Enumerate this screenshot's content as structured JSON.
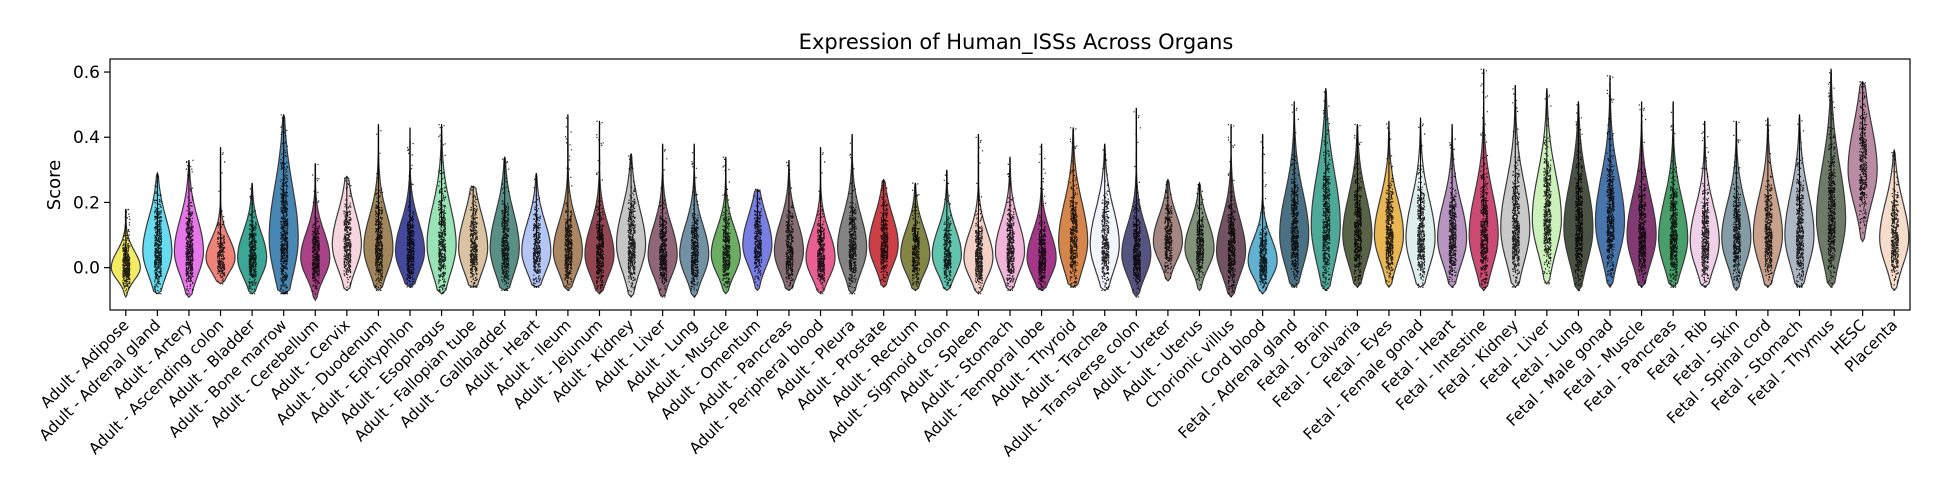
{
  "chart_data": {
    "type": "violin",
    "title": "Expression of Human_ISSs Across Organs",
    "xlabel": "",
    "ylabel": "Score",
    "ylim": [
      -0.13,
      0.64
    ],
    "yticks": [
      0.0,
      0.2,
      0.4,
      0.6
    ],
    "ytick_labels": [
      "0.0",
      "0.2",
      "0.4",
      "0.6"
    ],
    "grid": false,
    "legend": "none",
    "series": [
      {
        "category": "Adult - Adipose",
        "color": "#f2ea5b",
        "min": -0.09,
        "q1": -0.02,
        "median": 0.0,
        "q3": 0.03,
        "max": 0.18,
        "n": 1400
      },
      {
        "category": "Adult - Adrenal gland",
        "color": "#5fd9ee",
        "min": -0.08,
        "q1": 0.0,
        "median": 0.05,
        "q3": 0.1,
        "max": 0.29,
        "n": 1500
      },
      {
        "category": "Adult - Artery",
        "color": "#e56fe8",
        "min": -0.09,
        "q1": 0.0,
        "median": 0.05,
        "q3": 0.1,
        "max": 0.33,
        "n": 1500
      },
      {
        "category": "Adult - Ascending colon",
        "color": "#ee7b72",
        "min": -0.05,
        "q1": 0.0,
        "median": 0.03,
        "q3": 0.06,
        "max": 0.37,
        "n": 700
      },
      {
        "category": "Adult - Bladder",
        "color": "#2fa38f",
        "min": -0.08,
        "q1": -0.01,
        "median": 0.03,
        "q3": 0.07,
        "max": 0.26,
        "n": 1200
      },
      {
        "category": "Adult - Bone marrow",
        "color": "#3e7fb0",
        "min": -0.08,
        "q1": 0.02,
        "median": 0.09,
        "q3": 0.18,
        "max": 0.47,
        "n": 2000
      },
      {
        "category": "Adult - Cerebellum",
        "color": "#a4387f",
        "min": -0.1,
        "q1": -0.01,
        "median": 0.03,
        "q3": 0.07,
        "max": 0.32,
        "n": 1300
      },
      {
        "category": "Adult - Cervix",
        "color": "#f6d3dd",
        "min": -0.07,
        "q1": 0.02,
        "median": 0.07,
        "q3": 0.12,
        "max": 0.28,
        "n": 1200
      },
      {
        "category": "Adult - Duodenum",
        "color": "#9c7e52",
        "min": -0.07,
        "q1": 0.01,
        "median": 0.06,
        "q3": 0.11,
        "max": 0.44,
        "n": 1300
      },
      {
        "category": "Adult - Epityphlon",
        "color": "#3a3f98",
        "min": -0.06,
        "q1": 0.01,
        "median": 0.05,
        "q3": 0.1,
        "max": 0.43,
        "n": 1300
      },
      {
        "category": "Adult - Esophagus",
        "color": "#92e3b3",
        "min": -0.08,
        "q1": 0.01,
        "median": 0.07,
        "q3": 0.13,
        "max": 0.44,
        "n": 1500
      },
      {
        "category": "Adult - Fallopian tube",
        "color": "#d8bf9d",
        "min": -0.06,
        "q1": 0.01,
        "median": 0.06,
        "q3": 0.11,
        "max": 0.25,
        "n": 1200
      },
      {
        "category": "Adult - Gallbladder",
        "color": "#4f8a7f",
        "min": -0.07,
        "q1": 0.01,
        "median": 0.06,
        "q3": 0.12,
        "max": 0.34,
        "n": 1400
      },
      {
        "category": "Adult - Heart",
        "color": "#b0c3f5",
        "min": -0.06,
        "q1": 0.0,
        "median": 0.05,
        "q3": 0.09,
        "max": 0.29,
        "n": 1100
      },
      {
        "category": "Adult - Ileum",
        "color": "#a67f5b",
        "min": -0.07,
        "q1": 0.01,
        "median": 0.05,
        "q3": 0.1,
        "max": 0.47,
        "n": 1300
      },
      {
        "category": "Adult - Jejunum",
        "color": "#8c3c48",
        "min": -0.08,
        "q1": 0.0,
        "median": 0.04,
        "q3": 0.09,
        "max": 0.45,
        "n": 1300
      },
      {
        "category": "Adult - Kidney",
        "color": "#c3c3c3",
        "min": -0.09,
        "q1": 0.02,
        "median": 0.07,
        "q3": 0.13,
        "max": 0.35,
        "n": 1500
      },
      {
        "category": "Adult - Liver",
        "color": "#8b5e70",
        "min": -0.09,
        "q1": 0.0,
        "median": 0.04,
        "q3": 0.09,
        "max": 0.38,
        "n": 1400
      },
      {
        "category": "Adult - Lung",
        "color": "#6b8ba0",
        "min": -0.09,
        "q1": 0.0,
        "median": 0.04,
        "q3": 0.09,
        "max": 0.38,
        "n": 1400
      },
      {
        "category": "Adult - Muscle",
        "color": "#62a95b",
        "min": -0.08,
        "q1": 0.0,
        "median": 0.04,
        "q3": 0.08,
        "max": 0.34,
        "n": 1200
      },
      {
        "category": "Adult - Omentum",
        "color": "#7177e2",
        "min": -0.07,
        "q1": 0.03,
        "median": 0.07,
        "q3": 0.12,
        "max": 0.24,
        "n": 1100
      },
      {
        "category": "Adult - Pancreas",
        "color": "#80686d",
        "min": -0.07,
        "q1": 0.01,
        "median": 0.05,
        "q3": 0.1,
        "max": 0.33,
        "n": 1100
      },
      {
        "category": "Adult - Peripheral blood",
        "color": "#e8568b",
        "min": -0.08,
        "q1": -0.01,
        "median": 0.03,
        "q3": 0.07,
        "max": 0.37,
        "n": 1200
      },
      {
        "category": "Adult - Pleura",
        "color": "#7d7d7d",
        "min": -0.08,
        "q1": 0.01,
        "median": 0.06,
        "q3": 0.11,
        "max": 0.41,
        "n": 1300
      },
      {
        "category": "Adult - Prostate",
        "color": "#c9353c",
        "min": -0.06,
        "q1": 0.03,
        "median": 0.07,
        "q3": 0.12,
        "max": 0.27,
        "n": 1100
      },
      {
        "category": "Adult - Rectum",
        "color": "#7d7f3c",
        "min": -0.07,
        "q1": 0.0,
        "median": 0.04,
        "q3": 0.08,
        "max": 0.26,
        "n": 1100
      },
      {
        "category": "Adult - Sigmoid colon",
        "color": "#57c1aa",
        "min": -0.07,
        "q1": 0.0,
        "median": 0.04,
        "q3": 0.08,
        "max": 0.3,
        "n": 1100
      },
      {
        "category": "Adult - Spleen",
        "color": "#f2cfc3",
        "min": -0.08,
        "q1": -0.01,
        "median": 0.03,
        "q3": 0.07,
        "max": 0.41,
        "n": 1400
      },
      {
        "category": "Adult - Stomach",
        "color": "#efb1d7",
        "min": -0.07,
        "q1": 0.0,
        "median": 0.05,
        "q3": 0.09,
        "max": 0.34,
        "n": 1300
      },
      {
        "category": "Adult - Temporal lobe",
        "color": "#a02c82",
        "min": -0.07,
        "q1": -0.01,
        "median": 0.03,
        "q3": 0.07,
        "max": 0.38,
        "n": 1200
      },
      {
        "category": "Adult - Thyroid",
        "color": "#d57f41",
        "min": -0.06,
        "q1": 0.02,
        "median": 0.08,
        "q3": 0.14,
        "max": 0.43,
        "n": 1300
      },
      {
        "category": "Adult - Trachea",
        "color": "#f1f4fb",
        "min": -0.07,
        "q1": 0.02,
        "median": 0.07,
        "q3": 0.13,
        "max": 0.38,
        "n": 1300
      },
      {
        "category": "Adult - Transverse colon",
        "color": "#4e4a7a",
        "min": -0.09,
        "q1": 0.0,
        "median": 0.04,
        "q3": 0.09,
        "max": 0.49,
        "n": 1400
      },
      {
        "category": "Adult - Ureter",
        "color": "#a07f7b",
        "min": -0.04,
        "q1": 0.04,
        "median": 0.08,
        "q3": 0.12,
        "max": 0.27,
        "n": 1000
      },
      {
        "category": "Adult - Uterus",
        "color": "#7a8c74",
        "min": -0.07,
        "q1": 0.02,
        "median": 0.06,
        "q3": 0.1,
        "max": 0.26,
        "n": 1100
      },
      {
        "category": "Chorionic villus",
        "color": "#6c4a59",
        "min": -0.09,
        "q1": 0.0,
        "median": 0.05,
        "q3": 0.1,
        "max": 0.44,
        "n": 1500
      },
      {
        "category": "Cord blood",
        "color": "#57aed0",
        "min": -0.08,
        "q1": -0.01,
        "median": 0.02,
        "q3": 0.06,
        "max": 0.41,
        "n": 1300
      },
      {
        "category": "Fetal - Adrenal gland",
        "color": "#40687c",
        "min": -0.06,
        "q1": 0.04,
        "median": 0.1,
        "q3": 0.17,
        "max": 0.51,
        "n": 1600
      },
      {
        "category": "Fetal - Brain",
        "color": "#43a593",
        "min": -0.07,
        "q1": 0.05,
        "median": 0.13,
        "q3": 0.21,
        "max": 0.55,
        "n": 1700
      },
      {
        "category": "Fetal - Calvaria",
        "color": "#4f5a3c",
        "min": -0.06,
        "q1": 0.04,
        "median": 0.1,
        "q3": 0.16,
        "max": 0.44,
        "n": 1500
      },
      {
        "category": "Fetal - Eyes",
        "color": "#e7b24a",
        "min": -0.06,
        "q1": 0.05,
        "median": 0.1,
        "q3": 0.16,
        "max": 0.45,
        "n": 1500
      },
      {
        "category": "Fetal - Female gonad",
        "color": "#dceeeb",
        "min": -0.06,
        "q1": 0.03,
        "median": 0.09,
        "q3": 0.15,
        "max": 0.46,
        "n": 1500
      },
      {
        "category": "Fetal - Heart",
        "color": "#b38fbd",
        "min": -0.06,
        "q1": 0.04,
        "median": 0.09,
        "q3": 0.15,
        "max": 0.44,
        "n": 1500
      },
      {
        "category": "Fetal - Intestine",
        "color": "#c9416c",
        "min": -0.07,
        "q1": 0.04,
        "median": 0.1,
        "q3": 0.17,
        "max": 0.61,
        "n": 1600
      },
      {
        "category": "Fetal - Kidney",
        "color": "#c6c6c6",
        "min": -0.06,
        "q1": 0.05,
        "median": 0.12,
        "q3": 0.19,
        "max": 0.56,
        "n": 1700
      },
      {
        "category": "Fetal - Liver",
        "color": "#c9f0b7",
        "min": -0.05,
        "q1": 0.08,
        "median": 0.15,
        "q3": 0.22,
        "max": 0.55,
        "n": 1700
      },
      {
        "category": "Fetal - Lung",
        "color": "#40493a",
        "min": -0.07,
        "q1": 0.05,
        "median": 0.12,
        "q3": 0.19,
        "max": 0.51,
        "n": 1700
      },
      {
        "category": "Fetal - Male gonad",
        "color": "#3d6ea8",
        "min": -0.06,
        "q1": 0.07,
        "median": 0.14,
        "q3": 0.21,
        "max": 0.59,
        "n": 1700
      },
      {
        "category": "Fetal - Muscle",
        "color": "#7c2e6a",
        "min": -0.06,
        "q1": 0.04,
        "median": 0.1,
        "q3": 0.16,
        "max": 0.51,
        "n": 1600
      },
      {
        "category": "Fetal - Pancreas",
        "color": "#3f9a62",
        "min": -0.06,
        "q1": 0.03,
        "median": 0.09,
        "q3": 0.15,
        "max": 0.51,
        "n": 1600
      },
      {
        "category": "Fetal - Rib",
        "color": "#efcfe7",
        "min": -0.06,
        "q1": 0.03,
        "median": 0.08,
        "q3": 0.14,
        "max": 0.45,
        "n": 1500
      },
      {
        "category": "Fetal - Skin",
        "color": "#7d97a0",
        "min": -0.07,
        "q1": 0.03,
        "median": 0.09,
        "q3": 0.14,
        "max": 0.45,
        "n": 1500
      },
      {
        "category": "Fetal - Spinal cord",
        "color": "#c69c87",
        "min": -0.06,
        "q1": 0.04,
        "median": 0.1,
        "q3": 0.16,
        "max": 0.46,
        "n": 1500
      },
      {
        "category": "Fetal - Stomach",
        "color": "#aab4c2",
        "min": -0.06,
        "q1": 0.04,
        "median": 0.1,
        "q3": 0.17,
        "max": 0.47,
        "n": 1500
      },
      {
        "category": "Fetal - Thymus",
        "color": "#667461",
        "min": -0.06,
        "q1": 0.07,
        "median": 0.15,
        "q3": 0.23,
        "max": 0.61,
        "n": 1700
      },
      {
        "category": "HESC",
        "color": "#b6869e",
        "min": 0.08,
        "q1": 0.23,
        "median": 0.3,
        "q3": 0.37,
        "max": 0.57,
        "n": 1300
      },
      {
        "category": "Placenta",
        "color": "#f4dac8",
        "min": -0.07,
        "q1": 0.03,
        "median": 0.09,
        "q3": 0.14,
        "max": 0.36,
        "n": 1300
      }
    ]
  }
}
